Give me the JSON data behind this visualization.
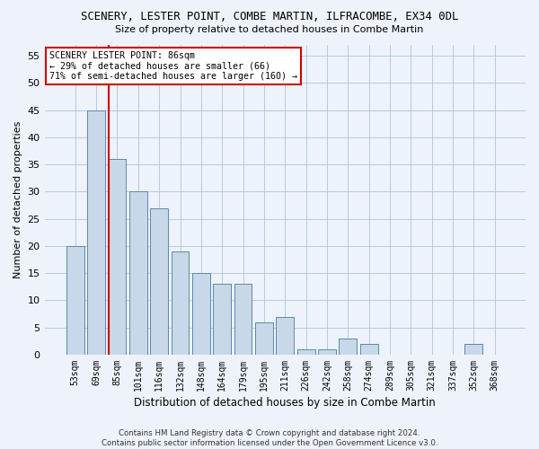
{
  "title": "SCENERY, LESTER POINT, COMBE MARTIN, ILFRACOMBE, EX34 0DL",
  "subtitle": "Size of property relative to detached houses in Combe Martin",
  "xlabel": "Distribution of detached houses by size in Combe Martin",
  "ylabel": "Number of detached properties",
  "categories": [
    "53sqm",
    "69sqm",
    "85sqm",
    "101sqm",
    "116sqm",
    "132sqm",
    "148sqm",
    "164sqm",
    "179sqm",
    "195sqm",
    "211sqm",
    "226sqm",
    "242sqm",
    "258sqm",
    "274sqm",
    "289sqm",
    "305sqm",
    "321sqm",
    "337sqm",
    "352sqm",
    "368sqm"
  ],
  "values": [
    20,
    45,
    36,
    30,
    27,
    19,
    15,
    13,
    13,
    6,
    7,
    1,
    1,
    3,
    2,
    0,
    0,
    0,
    0,
    2,
    0
  ],
  "bar_color": "#c8d8e8",
  "bar_edgecolor": "#5a8aaa",
  "bar_linewidth": 0.7,
  "highlight_line_color": "#cc0000",
  "highlight_line_index": 2,
  "grid_color": "#aec4d8",
  "background_color": "#eef2fb",
  "ylim": [
    0,
    57
  ],
  "yticks": [
    0,
    5,
    10,
    15,
    20,
    25,
    30,
    35,
    40,
    45,
    50,
    55
  ],
  "annotation_title": "SCENERY LESTER POINT: 86sqm",
  "annotation_line1": "← 29% of detached houses are smaller (66)",
  "annotation_line2": "71% of semi-detached houses are larger (160) →",
  "annotation_box_facecolor": "#ffffff",
  "annotation_box_edgecolor": "#cc0000",
  "footer_line1": "Contains HM Land Registry data © Crown copyright and database right 2024.",
  "footer_line2": "Contains public sector information licensed under the Open Government Licence v3.0."
}
